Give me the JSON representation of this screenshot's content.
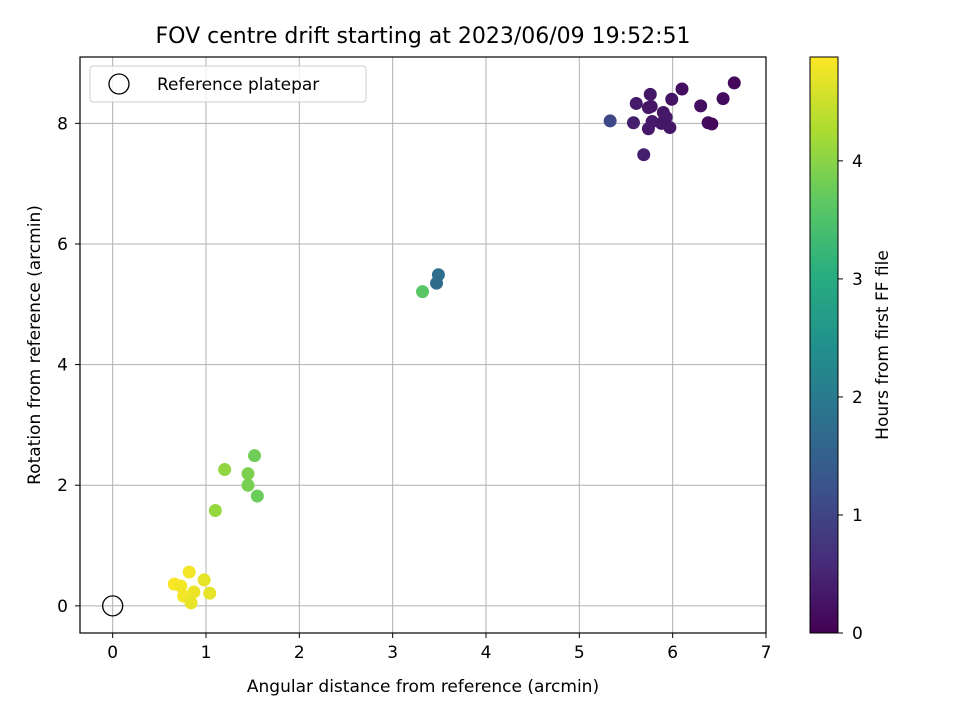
{
  "chart_data": {
    "type": "scatter",
    "title": "FOV centre drift starting at 2023/06/09 19:52:51",
    "xlabel": "Angular distance from reference (arcmin)",
    "ylabel": "Rotation from reference (arcmin)",
    "xlim": [
      -0.35,
      7.0
    ],
    "ylim": [
      -0.45,
      9.1
    ],
    "xticks": [
      0,
      1,
      2,
      3,
      4,
      5,
      6,
      7
    ],
    "yticks": [
      0,
      2,
      4,
      6,
      8
    ],
    "grid": true,
    "legend": {
      "location": "upper left",
      "entries": [
        "Reference platepar"
      ]
    },
    "reference_point": {
      "x": 0,
      "y": 0,
      "label": "Reference platepar",
      "marker": "hollow-circle"
    },
    "colorbar": {
      "label": "Hours from first FF file",
      "colormap": "viridis",
      "range": [
        0,
        4.88
      ],
      "ticks": [
        0,
        1,
        2,
        3,
        4
      ]
    },
    "points": [
      {
        "x": 6.66,
        "y": 8.67,
        "hours": 0.1
      },
      {
        "x": 6.1,
        "y": 8.57,
        "hours": 0.2
      },
      {
        "x": 6.54,
        "y": 8.41,
        "hours": 0.15
      },
      {
        "x": 5.76,
        "y": 8.48,
        "hours": 0.3
      },
      {
        "x": 5.99,
        "y": 8.4,
        "hours": 0.25
      },
      {
        "x": 5.61,
        "y": 8.33,
        "hours": 0.35
      },
      {
        "x": 5.74,
        "y": 8.26,
        "hours": 0.3
      },
      {
        "x": 5.77,
        "y": 8.28,
        "hours": 0.28
      },
      {
        "x": 6.3,
        "y": 8.29,
        "hours": 0.2
      },
      {
        "x": 5.9,
        "y": 8.18,
        "hours": 0.3
      },
      {
        "x": 5.93,
        "y": 8.1,
        "hours": 0.32
      },
      {
        "x": 5.78,
        "y": 8.03,
        "hours": 0.35
      },
      {
        "x": 5.88,
        "y": 8.0,
        "hours": 0.3
      },
      {
        "x": 5.58,
        "y": 8.01,
        "hours": 0.4
      },
      {
        "x": 6.38,
        "y": 8.01,
        "hours": 0.15
      },
      {
        "x": 6.42,
        "y": 7.99,
        "hours": 0.1
      },
      {
        "x": 5.74,
        "y": 7.91,
        "hours": 0.35
      },
      {
        "x": 5.97,
        "y": 7.93,
        "hours": 0.3
      },
      {
        "x": 5.33,
        "y": 8.04,
        "hours": 1.05
      },
      {
        "x": 5.69,
        "y": 7.48,
        "hours": 0.4
      },
      {
        "x": 3.49,
        "y": 5.49,
        "hours": 1.75
      },
      {
        "x": 3.47,
        "y": 5.35,
        "hours": 1.7
      },
      {
        "x": 3.32,
        "y": 5.21,
        "hours": 3.6
      },
      {
        "x": 1.52,
        "y": 2.49,
        "hours": 3.8
      },
      {
        "x": 1.2,
        "y": 2.26,
        "hours": 4.05
      },
      {
        "x": 1.45,
        "y": 2.19,
        "hours": 3.9
      },
      {
        "x": 1.45,
        "y": 2.0,
        "hours": 3.85
      },
      {
        "x": 1.55,
        "y": 1.82,
        "hours": 3.75
      },
      {
        "x": 1.1,
        "y": 1.58,
        "hours": 4.1
      },
      {
        "x": 0.82,
        "y": 0.56,
        "hours": 4.8
      },
      {
        "x": 0.66,
        "y": 0.36,
        "hours": 4.85
      },
      {
        "x": 0.73,
        "y": 0.33,
        "hours": 4.8
      },
      {
        "x": 0.98,
        "y": 0.43,
        "hours": 4.7
      },
      {
        "x": 0.87,
        "y": 0.23,
        "hours": 4.75
      },
      {
        "x": 1.04,
        "y": 0.21,
        "hours": 4.7
      },
      {
        "x": 0.76,
        "y": 0.16,
        "hours": 4.8
      },
      {
        "x": 0.84,
        "y": 0.05,
        "hours": 4.72
      }
    ]
  }
}
